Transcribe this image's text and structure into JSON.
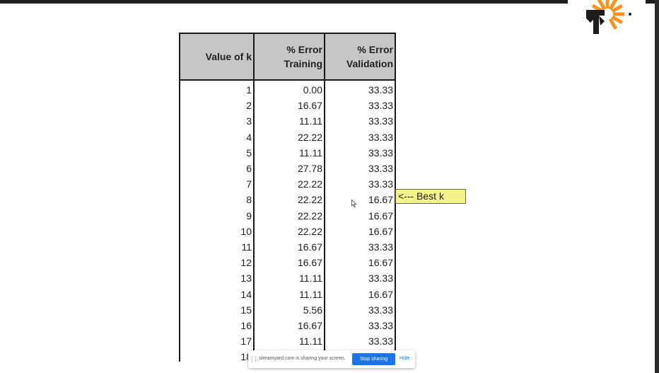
{
  "logo": {
    "label": "StreamYard",
    "accent": "#f7941d",
    "dark": "#1c1c1c"
  },
  "table": {
    "headers": [
      "Value of k",
      "% Error Training",
      "% Error Validation"
    ],
    "header_lines": [
      [
        "Value of k"
      ],
      [
        "% Error",
        "Training"
      ],
      [
        "% Error",
        "Validation"
      ]
    ],
    "rows": [
      [
        "1",
        "0.00",
        "33.33"
      ],
      [
        "2",
        "16.67",
        "33.33"
      ],
      [
        "3",
        "11.11",
        "33.33"
      ],
      [
        "4",
        "22.22",
        "33.33"
      ],
      [
        "5",
        "11.11",
        "33.33"
      ],
      [
        "6",
        "27.78",
        "33.33"
      ],
      [
        "7",
        "22.22",
        "33.33"
      ],
      [
        "8",
        "22.22",
        "16.67"
      ],
      [
        "9",
        "22.22",
        "16.67"
      ],
      [
        "10",
        "22.22",
        "16.67"
      ],
      [
        "11",
        "16.67",
        "33.33"
      ],
      [
        "12",
        "16.67",
        "16.67"
      ],
      [
        "13",
        "11.11",
        "33.33"
      ],
      [
        "14",
        "11.11",
        "16.67"
      ],
      [
        "15",
        "5.56",
        "33.33"
      ],
      [
        "16",
        "16.67",
        "33.33"
      ],
      [
        "17",
        "11.11",
        "33.33"
      ],
      [
        "18",
        "",
        ""
      ]
    ]
  },
  "annotation": {
    "text": "<--- Best k",
    "color": "#f5f28a"
  },
  "share_bar": {
    "message": "streamyard.com is sharing your screen.",
    "stop_label": "Stop sharing",
    "hide_label": "Hide"
  }
}
